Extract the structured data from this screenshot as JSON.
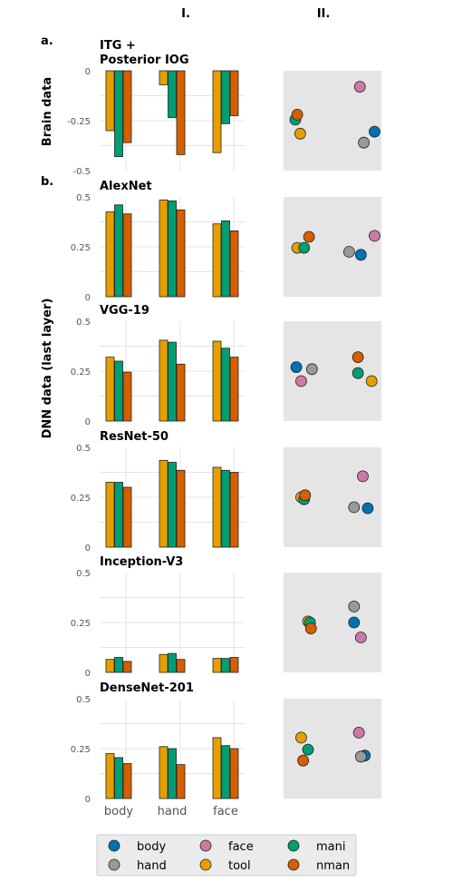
{
  "column_labels": [
    "I.",
    "II."
  ],
  "section_labels": {
    "a": "a.",
    "b": "b."
  },
  "row_labels": {
    "brain": "Brain data",
    "dnn": "DNN data (last layer)"
  },
  "colors": {
    "body": "#0072b2",
    "hand": "#999999",
    "face": "#cc79a7",
    "tool": "#e69f00",
    "mani": "#009e73",
    "nman": "#d55e00",
    "panel_bg": "#e5e5e5"
  },
  "legend": {
    "entries": [
      {
        "key": "body",
        "label": "body"
      },
      {
        "key": "hand",
        "label": "hand"
      },
      {
        "key": "face",
        "label": "face"
      },
      {
        "key": "tool",
        "label": "tool"
      },
      {
        "key": "mani",
        "label": "mani"
      },
      {
        "key": "nman",
        "label": "nman"
      }
    ]
  },
  "chart_data": [
    {
      "type": "bar",
      "title": "ITG +\nPosterior IOG",
      "categories": [
        "body",
        "hand",
        "face"
      ],
      "ylim": [
        -0.5,
        0
      ],
      "yticks": [
        "0",
        "-0.25",
        "-0.5"
      ],
      "series": [
        {
          "name": "tool",
          "values": [
            -0.3,
            -0.07,
            -0.41
          ]
        },
        {
          "name": "mani",
          "values": [
            -0.43,
            -0.235,
            -0.265
          ]
        },
        {
          "name": "nman",
          "values": [
            -0.36,
            -0.42,
            -0.225
          ]
        }
      ],
      "scatter": [
        {
          "name": "body",
          "x": 0.93,
          "y": -0.305
        },
        {
          "name": "hand",
          "x": 0.82,
          "y": -0.36
        },
        {
          "name": "face",
          "x": 0.78,
          "y": -0.08
        },
        {
          "name": "tool",
          "x": 0.17,
          "y": -0.315
        },
        {
          "name": "mani",
          "x": 0.12,
          "y": -0.245
        },
        {
          "name": "nman",
          "x": 0.14,
          "y": -0.22
        }
      ]
    },
    {
      "type": "bar",
      "title": "AlexNet",
      "categories": [
        "body",
        "hand",
        "face"
      ],
      "ylim": [
        0,
        0.5
      ],
      "yticks": [
        "0.5",
        "0.25",
        "0"
      ],
      "series": [
        {
          "name": "tool",
          "values": [
            0.425,
            0.485,
            0.365
          ]
        },
        {
          "name": "mani",
          "values": [
            0.46,
            0.48,
            0.38
          ]
        },
        {
          "name": "nman",
          "values": [
            0.415,
            0.435,
            0.33
          ]
        }
      ],
      "scatter": [
        {
          "name": "body",
          "x": 0.79,
          "y": 0.21
        },
        {
          "name": "hand",
          "x": 0.67,
          "y": 0.225
        },
        {
          "name": "face",
          "x": 0.93,
          "y": 0.305
        },
        {
          "name": "tool",
          "x": 0.14,
          "y": 0.245
        },
        {
          "name": "mani",
          "x": 0.21,
          "y": 0.245
        },
        {
          "name": "nman",
          "x": 0.26,
          "y": 0.3
        }
      ]
    },
    {
      "type": "bar",
      "title": "VGG-19",
      "categories": [
        "body",
        "hand",
        "face"
      ],
      "ylim": [
        0,
        0.5
      ],
      "yticks": [
        "0.5",
        "0.25",
        "0"
      ],
      "series": [
        {
          "name": "tool",
          "values": [
            0.32,
            0.405,
            0.4
          ]
        },
        {
          "name": "mani",
          "values": [
            0.3,
            0.395,
            0.365
          ]
        },
        {
          "name": "nman",
          "values": [
            0.245,
            0.285,
            0.32
          ]
        }
      ],
      "scatter": [
        {
          "name": "body",
          "x": 0.13,
          "y": 0.27
        },
        {
          "name": "hand",
          "x": 0.29,
          "y": 0.26
        },
        {
          "name": "face",
          "x": 0.18,
          "y": 0.2
        },
        {
          "name": "tool",
          "x": 0.9,
          "y": 0.2
        },
        {
          "name": "mani",
          "x": 0.76,
          "y": 0.24
        },
        {
          "name": "nman",
          "x": 0.76,
          "y": 0.32
        }
      ]
    },
    {
      "type": "bar",
      "title": "ResNet-50",
      "categories": [
        "body",
        "hand",
        "face"
      ],
      "ylim": [
        0,
        0.5
      ],
      "yticks": [
        "0.5",
        "0.25",
        "0"
      ],
      "series": [
        {
          "name": "tool",
          "values": [
            0.325,
            0.435,
            0.4
          ]
        },
        {
          "name": "mani",
          "values": [
            0.325,
            0.425,
            0.385
          ]
        },
        {
          "name": "nman",
          "values": [
            0.3,
            0.385,
            0.375
          ]
        }
      ],
      "scatter": [
        {
          "name": "body",
          "x": 0.86,
          "y": 0.195
        },
        {
          "name": "hand",
          "x": 0.72,
          "y": 0.2
        },
        {
          "name": "face",
          "x": 0.81,
          "y": 0.355
        },
        {
          "name": "tool",
          "x": 0.18,
          "y": 0.25
        },
        {
          "name": "mani",
          "x": 0.21,
          "y": 0.24
        },
        {
          "name": "nman",
          "x": 0.22,
          "y": 0.26
        }
      ]
    },
    {
      "type": "bar",
      "title": "Inception-V3",
      "categories": [
        "body",
        "hand",
        "face"
      ],
      "ylim": [
        0,
        0.5
      ],
      "yticks": [
        "0.5",
        "0.25",
        "0"
      ],
      "series": [
        {
          "name": "tool",
          "values": [
            0.065,
            0.09,
            0.07
          ]
        },
        {
          "name": "mani",
          "values": [
            0.075,
            0.095,
            0.07
          ]
        },
        {
          "name": "nman",
          "values": [
            0.055,
            0.065,
            0.075
          ]
        }
      ],
      "scatter": [
        {
          "name": "body",
          "x": 0.72,
          "y": 0.25
        },
        {
          "name": "hand",
          "x": 0.72,
          "y": 0.33
        },
        {
          "name": "face",
          "x": 0.79,
          "y": 0.175
        },
        {
          "name": "tool",
          "x": 0.25,
          "y": 0.255
        },
        {
          "name": "mani",
          "x": 0.27,
          "y": 0.25
        },
        {
          "name": "nman",
          "x": 0.28,
          "y": 0.22
        }
      ]
    },
    {
      "type": "bar",
      "title": "DenseNet-201",
      "categories": [
        "body",
        "hand",
        "face"
      ],
      "ylim": [
        0,
        0.5
      ],
      "yticks": [
        "0.5",
        "0.25",
        "0"
      ],
      "series": [
        {
          "name": "tool",
          "values": [
            0.225,
            0.26,
            0.305
          ]
        },
        {
          "name": "mani",
          "values": [
            0.205,
            0.25,
            0.265
          ]
        },
        {
          "name": "nman",
          "values": [
            0.175,
            0.17,
            0.25
          ]
        }
      ],
      "scatter": [
        {
          "name": "body",
          "x": 0.83,
          "y": 0.215
        },
        {
          "name": "hand",
          "x": 0.79,
          "y": 0.21
        },
        {
          "name": "face",
          "x": 0.77,
          "y": 0.33
        },
        {
          "name": "tool",
          "x": 0.18,
          "y": 0.305
        },
        {
          "name": "mani",
          "x": 0.25,
          "y": 0.245
        },
        {
          "name": "nman",
          "x": 0.2,
          "y": 0.19
        }
      ]
    }
  ]
}
